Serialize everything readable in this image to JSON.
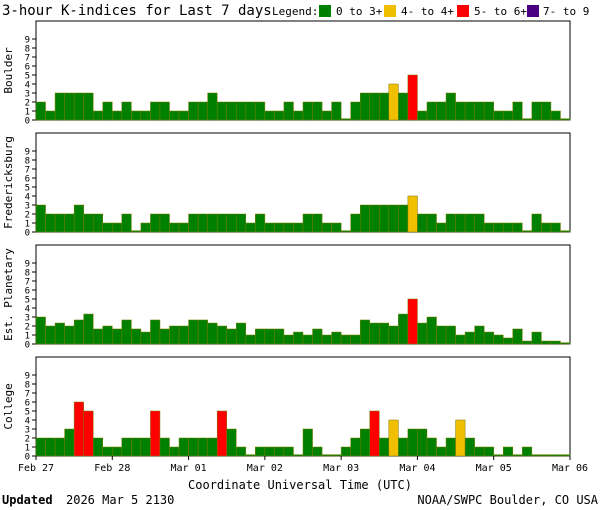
{
  "chart_data": {
    "type": "bar",
    "title": "3-hour K-indices for Last 7 days",
    "legend": {
      "label": "Legend:",
      "placement": "top-right",
      "items": [
        {
          "label": "0 to 3+",
          "color": "#008000"
        },
        {
          "label": "4- to 4+",
          "color": "#f0c000"
        },
        {
          "label": "5- to 6+",
          "color": "#ff0000"
        },
        {
          "label": "7- to 9",
          "color": "#4b0082"
        }
      ]
    },
    "ylim": [
      0,
      9
    ],
    "yticks": [
      "0",
      "1",
      "2",
      "3",
      "4",
      "5",
      "6",
      "7",
      "8",
      "9"
    ],
    "grid": false,
    "x_tick_labels": [
      "Feb 27",
      "Feb 28",
      "Mar 01",
      "Mar 02",
      "Mar 03",
      "Mar 04",
      "Mar 05",
      "Mar 06"
    ],
    "xlabel": "Coordinate Universal Time (UTC)",
    "bars_per_panel": 56,
    "panels": [
      {
        "name": "Boulder",
        "values": [
          2,
          1,
          3,
          3,
          3,
          3,
          1,
          2,
          1,
          2,
          1,
          1,
          2,
          2,
          1,
          1,
          2,
          2,
          3,
          2,
          2,
          2,
          2,
          2,
          1,
          1,
          2,
          1,
          2,
          2,
          1,
          2,
          0.15,
          2,
          3,
          3,
          3,
          4,
          3,
          5,
          1,
          2,
          2,
          3,
          2,
          2,
          2,
          2,
          1,
          1,
          2,
          0.15,
          2,
          2,
          1,
          0.15
        ]
      },
      {
        "name": "Fredericksburg",
        "values": [
          3,
          2,
          2,
          2,
          3,
          2,
          2,
          1,
          1,
          2,
          0.15,
          1,
          2,
          2,
          1,
          1,
          2,
          2,
          2,
          2,
          2,
          2,
          1,
          2,
          1,
          1,
          1,
          1,
          2,
          2,
          1,
          1,
          0.15,
          2,
          3,
          3,
          3,
          3,
          3,
          4,
          2,
          2,
          1,
          2,
          2,
          2,
          2,
          1,
          1,
          1,
          1,
          0.15,
          2,
          1,
          1,
          0.15
        ]
      },
      {
        "name": "Est. Planetary",
        "values": [
          3,
          2,
          2.33,
          2,
          2.67,
          3.33,
          1.67,
          2,
          1.67,
          2.67,
          1.67,
          1.33,
          2.67,
          1.67,
          2,
          2,
          2.67,
          2.67,
          2.33,
          2,
          1.67,
          2.33,
          1,
          1.67,
          1.67,
          1.67,
          1,
          1.33,
          1,
          1.67,
          1,
          1.33,
          1,
          1,
          2.67,
          2.33,
          2.33,
          2,
          3.33,
          5,
          2.33,
          3,
          2,
          2,
          1,
          1.33,
          2,
          1.33,
          1,
          0.67,
          1.67,
          0.33,
          1.33,
          0.33,
          0.33,
          0.15
        ]
      },
      {
        "name": "College",
        "values": [
          2,
          2,
          2,
          3,
          6,
          5,
          2,
          1,
          1,
          2,
          2,
          2,
          5,
          2,
          1,
          2,
          2,
          2,
          2,
          5,
          3,
          1,
          0.15,
          1,
          1,
          1,
          1,
          0.15,
          3,
          1,
          0.15,
          0.15,
          1,
          2,
          3,
          5,
          2,
          4,
          2,
          3,
          3,
          2,
          1,
          2,
          4,
          2,
          1,
          1,
          0.15,
          1,
          0.15,
          1,
          0.15,
          0.15,
          0.15,
          0.15
        ]
      }
    ]
  },
  "footer": {
    "updated_label": "Updated",
    "updated_value": "2026 Mar  5 2130",
    "credit": "NOAA/SWPC Boulder, CO USA"
  }
}
